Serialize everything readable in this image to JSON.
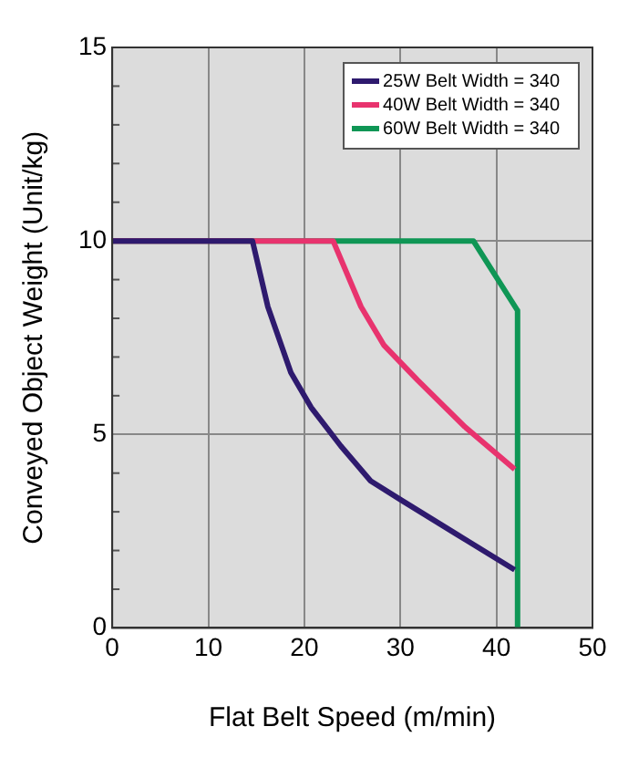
{
  "chart_data": {
    "type": "line",
    "xlabel": "Flat Belt Speed (m/min)",
    "ylabel": "Conveyed Object Weight (Unit/kg)",
    "xlim": [
      0,
      50
    ],
    "xticks": [
      0,
      10,
      20,
      30,
      40,
      50
    ],
    "ylim": [
      0,
      15
    ],
    "yticks": [
      0,
      5,
      10,
      15
    ],
    "grid": true,
    "legend": "top right",
    "marker": "none",
    "line_style": "solid",
    "series": [
      {
        "name": "25W Belt Width = 340",
        "color": "#2e1a6e",
        "x": [
          0,
          14.6,
          16.2,
          18.6,
          20.7,
          23.8,
          26.9,
          30.1,
          36,
          41.9
        ],
        "values": [
          10,
          10,
          8.3,
          6.6,
          5.7,
          4.7,
          3.8,
          3.3,
          2.4,
          1.5
        ]
      },
      {
        "name": "40W Belt Width = 340",
        "color": "#e8336e",
        "x": [
          0,
          14.6,
          23,
          25.9,
          28.3,
          31.8,
          36.7,
          41.9
        ],
        "values": [
          10,
          10,
          10,
          8.3,
          7.3,
          6.4,
          5.2,
          4.1
        ]
      },
      {
        "name": "60W Belt Width = 340",
        "color": "#0f9655",
        "x": [
          0,
          23,
          37.6,
          42.2,
          42.2
        ],
        "values": [
          10,
          10,
          10,
          8.2,
          0
        ]
      }
    ]
  }
}
